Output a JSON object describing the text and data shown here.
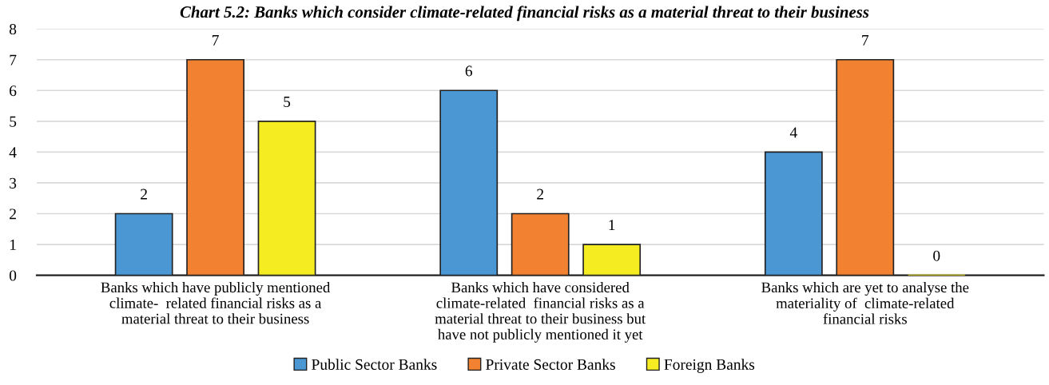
{
  "chart_data": {
    "type": "bar",
    "title": "Chart 5.2: Banks which consider climate-related financial risks as a material threat to their business",
    "categories": [
      "Banks which have publicly mentioned\nclimate-  related financial risks as a\nmaterial threat to their business",
      "Banks which have considered\nclimate-related  financial risks as a\nmaterial threat to their business but\nhave not publicly mentioned it yet",
      "Banks which are yet to analyse the\nmateriality of  climate-related\nfinancial risks"
    ],
    "series": [
      {
        "name": "Public Sector Banks",
        "color": "#4a97d3",
        "values": [
          2,
          6,
          4
        ]
      },
      {
        "name": "Private Sector Banks",
        "color": "#f28232",
        "values": [
          7,
          2,
          7
        ]
      },
      {
        "name": "Foreign Banks",
        "color": "#f5ec22",
        "values": [
          5,
          1,
          0
        ]
      }
    ],
    "ylim": [
      0,
      8
    ],
    "yticks": [
      0,
      1,
      2,
      3,
      4,
      5,
      6,
      7,
      8
    ],
    "grid": "y",
    "legend": "bottom",
    "data_labels": true
  }
}
